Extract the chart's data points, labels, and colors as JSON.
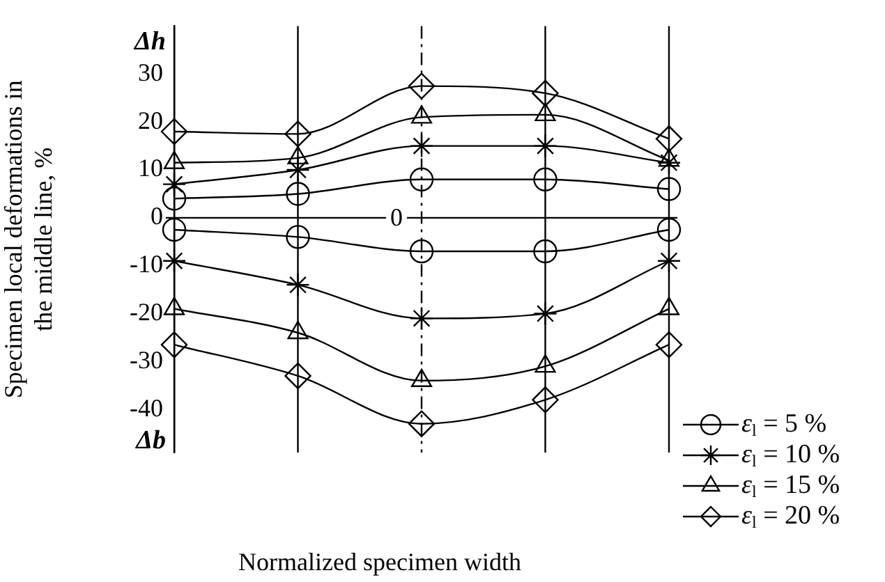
{
  "chart_data": {
    "type": "line",
    "xlabel": "Normalized specimen width",
    "ylabel": "Specimen local deformations in the middle line, %",
    "categories": [
      null,
      null,
      null,
      null,
      null
    ],
    "series": [
      {
        "name": "ε$_{l}$ = 5 %",
        "color": "#000000",
        "marker": "circle",
        "values": [
          4,
          5,
          8,
          8,
          6
        ]
      },
      {
        "color": "#000000",
        "marker": "circle",
        "values": [
          -2.5,
          -4,
          -7,
          -7,
          -2.5
        ]
      },
      {
        "name": "ε$_{l}$ = 10 %",
        "color": "#000000",
        "marker": "cross",
        "values": [
          7,
          10,
          15,
          15,
          11.5
        ]
      },
      {
        "color": "#000000",
        "marker": "cross",
        "values": [
          -9,
          -14,
          -21,
          -20,
          -9
        ]
      },
      {
        "name": "ε$_{l}$ = 15 %",
        "color": "#000000",
        "marker": "triangle",
        "values": [
          11.5,
          12.5,
          21,
          21.5,
          12
        ]
      },
      {
        "color": "#000000",
        "marker": "triangle",
        "values": [
          -19,
          -24,
          -34,
          -31,
          -19
        ]
      },
      {
        "name": "ε$_{l}$ = 20 %",
        "color": "#000000",
        "marker": "diamond",
        "values": [
          18,
          17.5,
          27.5,
          26,
          16.5
        ]
      },
      {
        "color": "#000000",
        "marker": "diamond",
        "values": [
          -26.5,
          -33,
          -43,
          -38,
          -26.5
        ]
      }
    ],
    "ylim": [
      -49,
      40
    ],
    "yticks": [
      -40,
      -30,
      -20,
      -10,
      0,
      10,
      20,
      30
    ],
    "annotations": [
      "Δh",
      "Δb",
      {
        "text": "0",
        "y": 0
      }
    ],
    "ref_lines": [
      {
        "axis": "y",
        "value": 0,
        "color": "#000000"
      }
    ],
    "grid": "x",
    "legend": "bottom right",
    "tick_labels": "y"
  }
}
